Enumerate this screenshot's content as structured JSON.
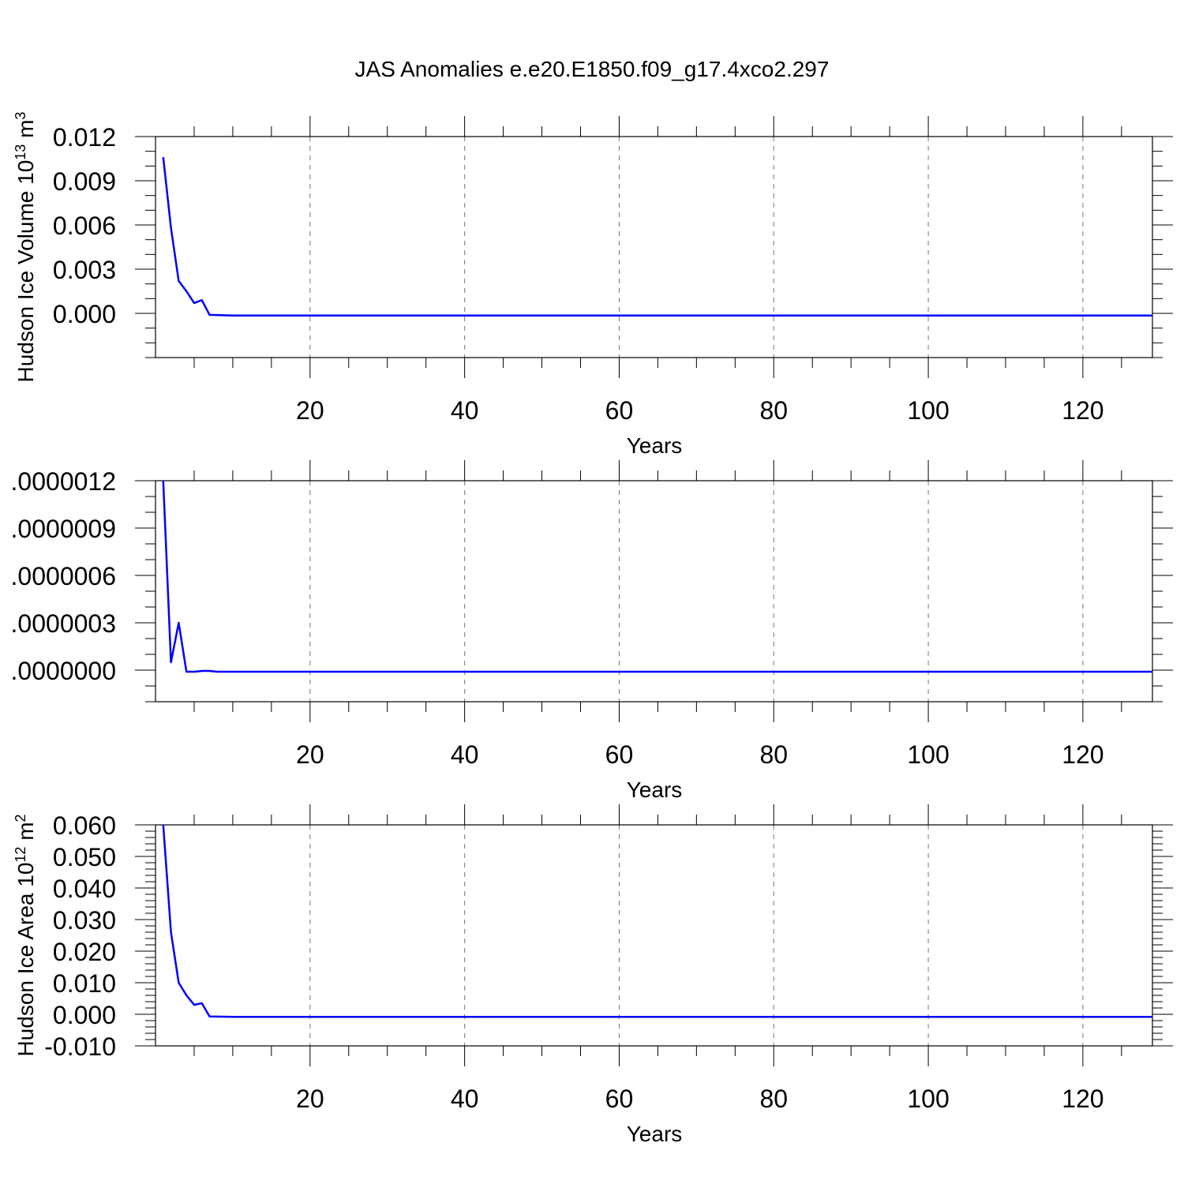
{
  "title": "JAS Anomalies e.e20.E1850.f09_g17.4xco2.297",
  "chart_data": [
    {
      "type": "line",
      "title": "",
      "xlabel": "Years",
      "ylabel": {
        "base": "Hudson Ice Volume 10",
        "exp": "13",
        "unit": " m",
        "unit_exp": "3"
      },
      "xlim": [
        0,
        129
      ],
      "ylim": [
        -0.003,
        0.012
      ],
      "xticks": [
        20,
        40,
        60,
        80,
        100,
        120
      ],
      "yticks": [
        0.0,
        0.003,
        0.006,
        0.009,
        0.012
      ],
      "ytick_labels": [
        "0.000",
        "0.003",
        "0.006",
        "0.009",
        "0.012"
      ],
      "yminor_step": 0.001,
      "grid": "x-dashed",
      "color": "#0000ff",
      "x": [
        1,
        2,
        3,
        4,
        5,
        6,
        7,
        10,
        20,
        50,
        100,
        129
      ],
      "y": [
        0.0106,
        0.0058,
        0.0022,
        0.0015,
        0.0007,
        0.0009,
        -0.0001,
        -0.00015,
        -0.00015,
        -0.00015,
        -0.00015,
        -0.00015
      ]
    },
    {
      "type": "line",
      "title": "",
      "xlabel": "Years",
      "ylabel": null,
      "xlim": [
        0,
        129
      ],
      "ylim": [
        -2e-07,
        1.2e-06
      ],
      "xticks": [
        20,
        40,
        60,
        80,
        100,
        120
      ],
      "yticks": [
        0.0,
        3e-07,
        6e-07,
        9e-07,
        1.2e-06
      ],
      "ytick_labels": [
        ".0000000",
        ".0000003",
        ".0000006",
        ".0000009",
        ".0000012"
      ],
      "yminor_step": 1e-07,
      "grid": "x-dashed",
      "color": "#0000ff",
      "x": [
        1,
        2,
        3,
        4,
        5,
        6,
        7,
        8,
        20,
        129
      ],
      "y": [
        1.2e-06,
        5e-08,
        3e-07,
        -1e-08,
        -1e-08,
        -5e-09,
        -5e-09,
        -1e-08,
        -1e-08,
        -1e-08
      ]
    },
    {
      "type": "line",
      "title": "",
      "xlabel": "Years",
      "ylabel": {
        "base": "Hudson Ice Area 10",
        "exp": "12",
        "unit": " m",
        "unit_exp": "2"
      },
      "xlim": [
        0,
        129
      ],
      "ylim": [
        -0.01,
        0.06
      ],
      "xticks": [
        20,
        40,
        60,
        80,
        100,
        120
      ],
      "yticks": [
        -0.01,
        0.0,
        0.01,
        0.02,
        0.03,
        0.04,
        0.05,
        0.06
      ],
      "ytick_labels": [
        "-0.010",
        "0.000",
        "0.010",
        "0.020",
        "0.030",
        "0.040",
        "0.050",
        "0.060"
      ],
      "yminor_step": 0.002,
      "grid": "x-dashed",
      "color": "#0000ff",
      "x": [
        1,
        2,
        3,
        4,
        5,
        6,
        7,
        10,
        20,
        129
      ],
      "y": [
        0.06,
        0.026,
        0.01,
        0.006,
        0.003,
        0.0035,
        -0.0007,
        -0.0008,
        -0.0008,
        -0.0008
      ]
    }
  ]
}
